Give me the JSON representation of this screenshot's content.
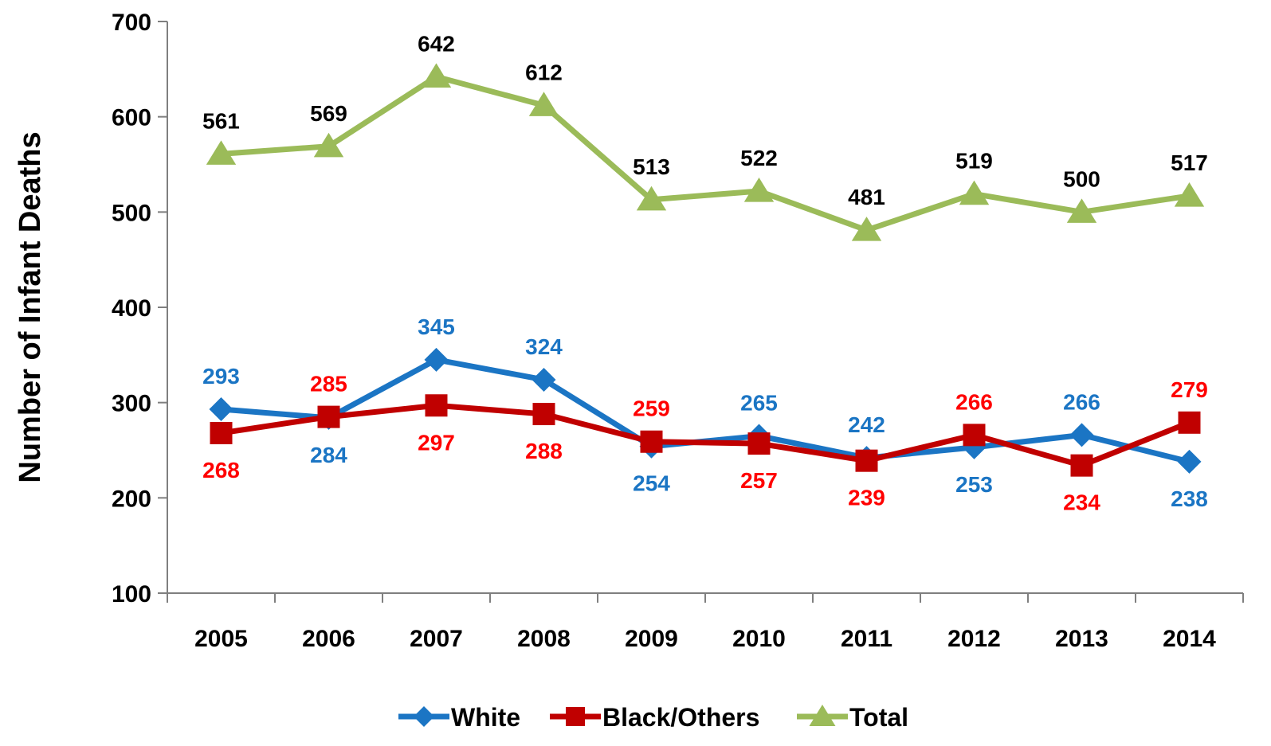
{
  "chart_data": {
    "type": "line",
    "title": "",
    "xlabel": "",
    "ylabel": "Number of Infant Deaths",
    "ylim": [
      100,
      700
    ],
    "yticks": [
      100,
      200,
      300,
      400,
      500,
      600,
      700
    ],
    "categories": [
      "2005",
      "2006",
      "2007",
      "2008",
      "2009",
      "2010",
      "2011",
      "2012",
      "2013",
      "2014"
    ],
    "grid": false,
    "legend_position": "bottom",
    "series": [
      {
        "name": "White",
        "color": "#1b75c4",
        "label_color": "#1b75c4",
        "marker": "diamond",
        "values": [
          293,
          284,
          345,
          324,
          254,
          265,
          242,
          253,
          266,
          238
        ],
        "label_pos": [
          "above",
          "below",
          "above",
          "above",
          "below",
          "above",
          "above",
          "below",
          "above",
          "below"
        ]
      },
      {
        "name": "Black/Others",
        "color": "#c00000",
        "label_color": "#ff0000",
        "marker": "square",
        "values": [
          268,
          285,
          297,
          288,
          259,
          257,
          239,
          266,
          234,
          279
        ],
        "label_pos": [
          "below",
          "above",
          "below",
          "below",
          "above",
          "below",
          "below",
          "above",
          "below",
          "above"
        ]
      },
      {
        "name": "Total",
        "color": "#9bbb59",
        "label_color": "#000000",
        "marker": "triangle",
        "values": [
          561,
          569,
          642,
          612,
          513,
          522,
          481,
          519,
          500,
          517
        ],
        "label_pos": [
          "above",
          "above",
          "above",
          "above",
          "above",
          "above",
          "above",
          "above",
          "above",
          "above"
        ]
      }
    ]
  }
}
